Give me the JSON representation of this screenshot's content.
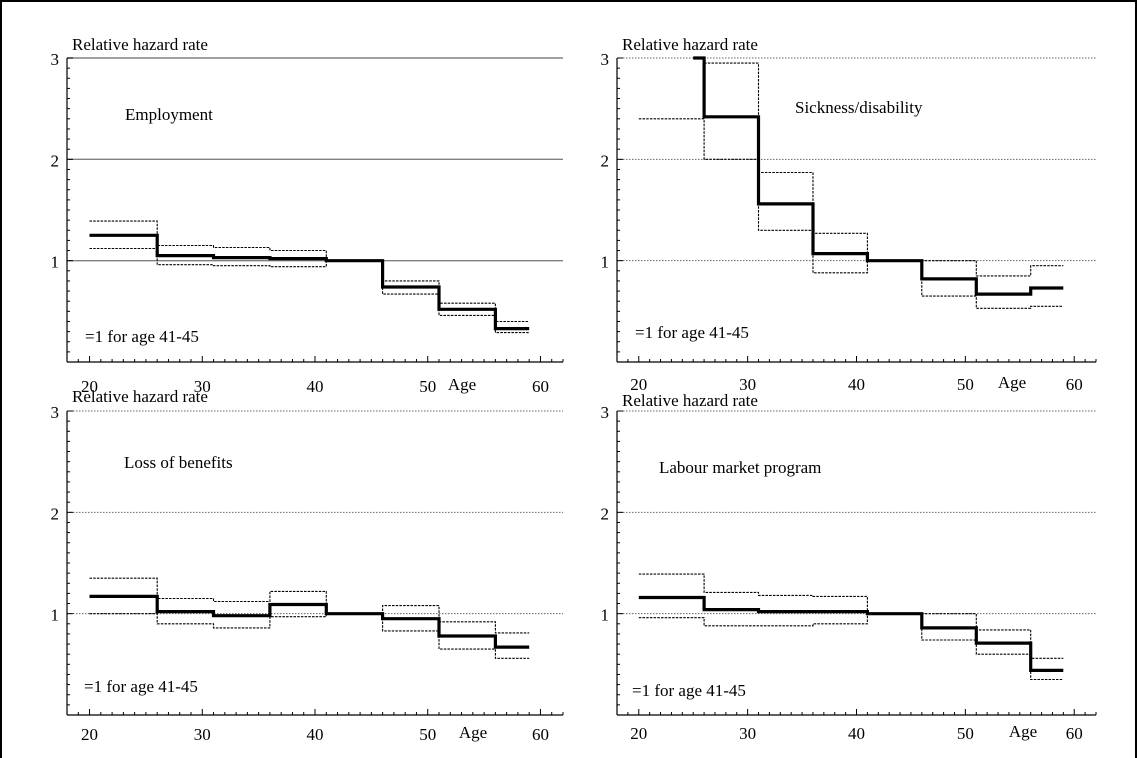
{
  "chart_data": [
    {
      "type": "line",
      "ylabel": "Relative hazard rate",
      "panel_label": "Employment",
      "note": "=1 for age 41-45",
      "xlabel": "Age",
      "xlim": [
        18,
        62
      ],
      "ylim": [
        0,
        3
      ],
      "xticks": [
        20,
        30,
        40,
        50,
        60
      ],
      "yticks": [
        1,
        2,
        3
      ],
      "grid_style": "solid",
      "series": [
        {
          "name": "",
          "role": "estimate",
          "steps": [
            [
              20,
              25,
              1.25
            ],
            [
              26,
              30,
              1.05
            ],
            [
              31,
              35,
              1.03
            ],
            [
              36,
              40,
              1.02
            ],
            [
              41,
              45,
              1.0
            ],
            [
              46,
              50,
              0.74
            ],
            [
              51,
              55,
              0.52
            ],
            [
              56,
              59,
              0.33
            ]
          ]
        },
        {
          "name": "",
          "role": "upper",
          "steps": [
            [
              20,
              25,
              1.39
            ],
            [
              26,
              30,
              1.15
            ],
            [
              31,
              35,
              1.13
            ],
            [
              36,
              40,
              1.1
            ],
            [
              41,
              45,
              1.0
            ],
            [
              46,
              50,
              0.8
            ],
            [
              51,
              55,
              0.58
            ],
            [
              56,
              59,
              0.4
            ]
          ]
        },
        {
          "name": "",
          "role": "lower",
          "steps": [
            [
              20,
              25,
              1.12
            ],
            [
              26,
              30,
              0.96
            ],
            [
              31,
              35,
              0.95
            ],
            [
              36,
              40,
              0.94
            ],
            [
              41,
              45,
              1.0
            ],
            [
              46,
              50,
              0.67
            ],
            [
              51,
              55,
              0.46
            ],
            [
              56,
              59,
              0.29
            ]
          ]
        }
      ]
    },
    {
      "type": "line",
      "ylabel": "Relative hazard rate",
      "panel_label": "Sickness/disability",
      "note": "=1 for age 41-45",
      "xlabel": "Age",
      "xlim": [
        18,
        62
      ],
      "ylim": [
        0,
        3
      ],
      "xticks": [
        20,
        30,
        40,
        50,
        60
      ],
      "yticks": [
        1,
        2,
        3
      ],
      "grid_style": "dotted",
      "series": [
        {
          "name": "",
          "role": "estimate",
          "steps": [
            [
              25,
              25,
              3.0
            ],
            [
              26,
              30,
              2.42
            ],
            [
              31,
              35,
              1.56
            ],
            [
              36,
              40,
              1.07
            ],
            [
              41,
              45,
              1.0
            ],
            [
              46,
              50,
              0.82
            ],
            [
              51,
              55,
              0.67
            ],
            [
              56,
              59,
              0.73
            ]
          ]
        },
        {
          "name": "",
          "role": "upper",
          "steps": [
            [
              26,
              30,
              2.95
            ],
            [
              31,
              35,
              1.87
            ],
            [
              36,
              40,
              1.27
            ],
            [
              41,
              45,
              1.0
            ],
            [
              46,
              50,
              1.0
            ],
            [
              51,
              55,
              0.85
            ],
            [
              56,
              59,
              0.95
            ]
          ]
        },
        {
          "name": "",
          "role": "lower",
          "steps": [
            [
              20,
              25,
              2.4
            ],
            [
              26,
              30,
              2.0
            ],
            [
              31,
              35,
              1.3
            ],
            [
              36,
              40,
              0.88
            ],
            [
              41,
              45,
              1.0
            ],
            [
              46,
              50,
              0.65
            ],
            [
              51,
              55,
              0.53
            ],
            [
              56,
              59,
              0.55
            ]
          ]
        }
      ]
    },
    {
      "type": "line",
      "ylabel": "Relative hazard rate",
      "panel_label": "Loss of benefits",
      "note": "=1 for age 41-45",
      "xlabel": "Age",
      "xlim": [
        18,
        62
      ],
      "ylim": [
        0,
        3
      ],
      "xticks": [
        20,
        30,
        40,
        50,
        60
      ],
      "yticks": [
        1,
        2,
        3
      ],
      "grid_style": "dotted",
      "series": [
        {
          "name": "",
          "role": "estimate",
          "steps": [
            [
              20,
              25,
              1.17
            ],
            [
              26,
              30,
              1.02
            ],
            [
              31,
              35,
              0.98
            ],
            [
              36,
              40,
              1.09
            ],
            [
              41,
              45,
              1.0
            ],
            [
              46,
              50,
              0.95
            ],
            [
              51,
              55,
              0.78
            ],
            [
              56,
              59,
              0.67
            ]
          ]
        },
        {
          "name": "",
          "role": "upper",
          "steps": [
            [
              20,
              25,
              1.35
            ],
            [
              26,
              30,
              1.15
            ],
            [
              31,
              35,
              1.12
            ],
            [
              36,
              40,
              1.22
            ],
            [
              41,
              45,
              1.0
            ],
            [
              46,
              50,
              1.08
            ],
            [
              51,
              55,
              0.92
            ],
            [
              56,
              59,
              0.81
            ]
          ]
        },
        {
          "name": "",
          "role": "lower",
          "steps": [
            [
              20,
              25,
              1.0
            ],
            [
              26,
              30,
              0.9
            ],
            [
              31,
              35,
              0.86
            ],
            [
              36,
              40,
              0.97
            ],
            [
              41,
              45,
              1.0
            ],
            [
              46,
              50,
              0.83
            ],
            [
              51,
              55,
              0.65
            ],
            [
              56,
              59,
              0.56
            ]
          ]
        }
      ]
    },
    {
      "type": "line",
      "ylabel": "Relative hazard rate",
      "panel_label": "Labour market program",
      "note": "=1 for age 41-45",
      "xlabel": "Age",
      "xlim": [
        18,
        62
      ],
      "ylim": [
        0,
        3
      ],
      "xticks": [
        20,
        30,
        40,
        50,
        60
      ],
      "yticks": [
        1,
        2,
        3
      ],
      "grid_style": "dotted",
      "series": [
        {
          "name": "",
          "role": "estimate",
          "steps": [
            [
              20,
              25,
              1.16
            ],
            [
              26,
              30,
              1.04
            ],
            [
              31,
              35,
              1.02
            ],
            [
              36,
              40,
              1.02
            ],
            [
              41,
              45,
              1.0
            ],
            [
              46,
              50,
              0.86
            ],
            [
              51,
              55,
              0.71
            ],
            [
              56,
              59,
              0.44
            ]
          ]
        },
        {
          "name": "",
          "role": "upper",
          "steps": [
            [
              20,
              25,
              1.39
            ],
            [
              26,
              30,
              1.21
            ],
            [
              31,
              35,
              1.18
            ],
            [
              36,
              40,
              1.17
            ],
            [
              41,
              45,
              1.0
            ],
            [
              46,
              50,
              1.0
            ],
            [
              51,
              55,
              0.84
            ],
            [
              56,
              59,
              0.56
            ]
          ]
        },
        {
          "name": "",
          "role": "lower",
          "steps": [
            [
              20,
              25,
              0.96
            ],
            [
              26,
              30,
              0.88
            ],
            [
              31,
              35,
              0.88
            ],
            [
              36,
              40,
              0.9
            ],
            [
              41,
              45,
              1.0
            ],
            [
              46,
              50,
              0.74
            ],
            [
              51,
              55,
              0.6
            ],
            [
              56,
              59,
              0.35
            ]
          ]
        }
      ]
    }
  ],
  "colors": {
    "line": "#000000",
    "grid": "#808080",
    "background": "#ffffff"
  }
}
